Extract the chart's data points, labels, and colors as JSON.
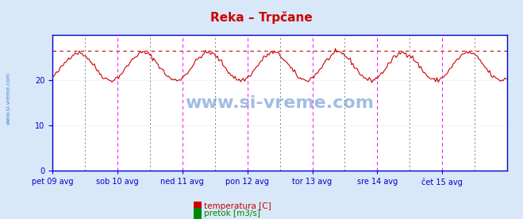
{
  "title": "Reka – Trpčane",
  "title_color": "#cc0000",
  "background_color": "#d8e8f8",
  "plot_bg_color": "#ffffff",
  "xlim": [
    0,
    336
  ],
  "ylim": [
    0,
    30
  ],
  "yticks": [
    0,
    10,
    20
  ],
  "xtick_labels": [
    "pet 09 avg",
    "sob 10 avg",
    "ned 11 avg",
    "pon 12 avg",
    "tor 13 avg",
    "sre 14 avg",
    "čet 15 avg"
  ],
  "xtick_positions": [
    0,
    48,
    96,
    144,
    192,
    240,
    288
  ],
  "vertical_lines_magenta": [
    0,
    48,
    96,
    144,
    192,
    240,
    288
  ],
  "vertical_lines_dark": [
    24,
    72,
    120,
    168,
    216,
    264,
    312
  ],
  "avg_line_y": 26.5,
  "avg_line_color": "#cc0000",
  "watermark": "www.si-vreme.com",
  "watermark_color": "#5588cc",
  "axis_color": "#0000cc",
  "grid_color": "#cccccc",
  "temp_color": "#cc0000",
  "pretok_color": "#008800",
  "legend_temp": "temperatura [C]",
  "legend_pretok": "pretok [m3/s]",
  "sidewater_color": "#3366cc"
}
